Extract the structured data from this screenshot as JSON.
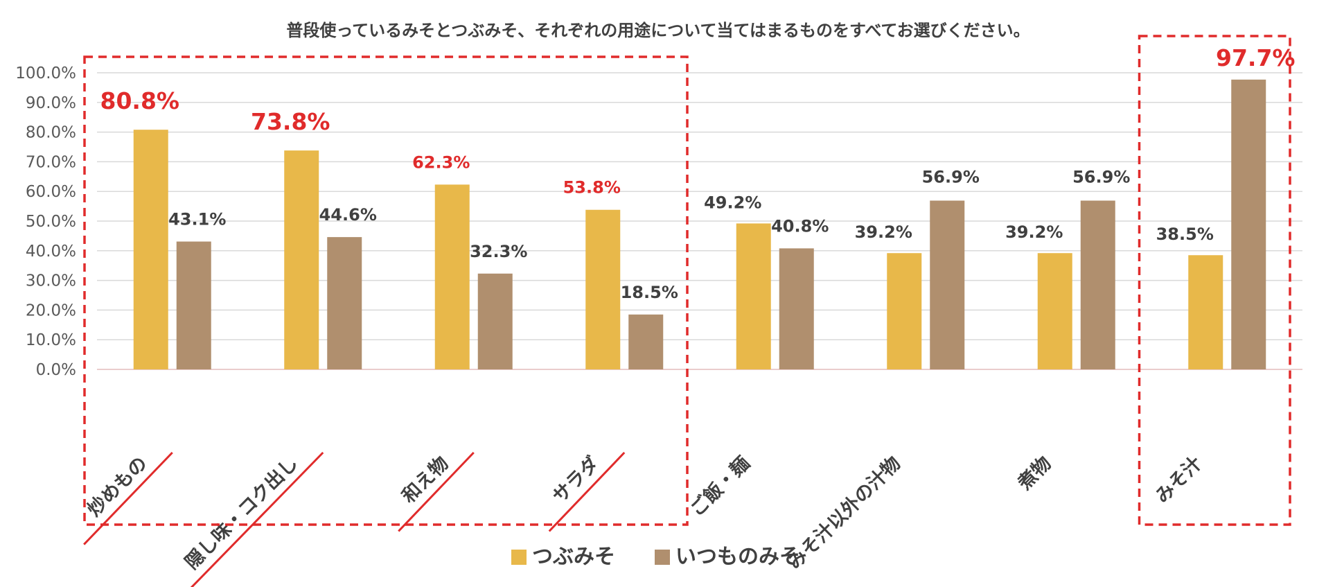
{
  "chart_data": {
    "type": "bar",
    "title": "普段使っているみそとつぶみそ、それぞれの用途について当てはまるものをすべてお選びください。",
    "categories": [
      "炒めもの",
      "隠し味・コク出し",
      "和え物",
      "サラダ",
      "ご飯・麺",
      "みそ汁以外の汁物",
      "煮物",
      "みそ汁"
    ],
    "series": [
      {
        "name": "つぶみそ",
        "color": "#E8B84A",
        "values": [
          80.8,
          73.8,
          62.3,
          53.8,
          49.2,
          39.2,
          39.2,
          38.5
        ]
      },
      {
        "name": "いつものみそ",
        "color": "#B08F6E",
        "values": [
          43.1,
          44.6,
          32.3,
          18.5,
          40.8,
          56.9,
          56.9,
          97.7
        ]
      }
    ],
    "value_labels": [
      [
        "80.8%",
        "73.8%",
        "62.3%",
        "53.8%",
        "49.2%",
        "39.2%",
        "39.2%",
        "38.5%"
      ],
      [
        "43.1%",
        "44.6%",
        "32.3%",
        "18.5%",
        "40.8%",
        "56.9%",
        "56.9%",
        "97.7%"
      ]
    ],
    "yticks": [
      "0.0%",
      "10.0%",
      "20.0%",
      "30.0%",
      "40.0%",
      "50.0%",
      "60.0%",
      "70.0%",
      "80.0%",
      "90.0%",
      "100.0%"
    ],
    "ylim": [
      0,
      100
    ],
    "grid": true,
    "legend_position": "bottom",
    "highlight_color": "#E02B2B",
    "label_color": "#404040",
    "annotations": {
      "highlight_groups": [
        [
          0,
          1,
          2,
          3
        ],
        [
          7
        ]
      ],
      "underlined_categories": [
        0,
        1,
        2,
        3
      ],
      "red_value_labels": [
        [
          0,
          0
        ],
        [
          0,
          1
        ],
        [
          0,
          2
        ],
        [
          0,
          3
        ],
        [
          1,
          7
        ]
      ]
    }
  }
}
